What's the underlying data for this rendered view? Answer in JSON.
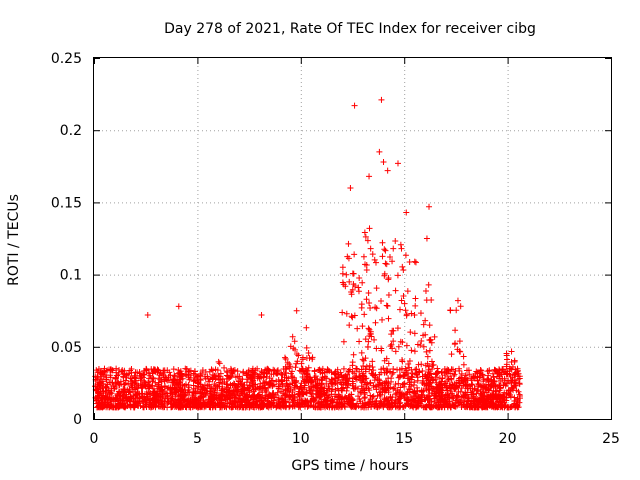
{
  "chart_data": {
    "type": "scatter",
    "title": "Day 278 of 2021, Rate Of TEC Index for receiver cibg",
    "xlabel": "GPS time / hours",
    "ylabel": "ROTI / TECUs",
    "xlim": [
      0,
      25
    ],
    "ylim": [
      0,
      0.25
    ],
    "xticks": [
      "0",
      "5",
      "10",
      "15",
      "20",
      "25"
    ],
    "xtick_values": [
      0,
      5,
      10,
      15,
      20,
      25
    ],
    "yticks": [
      "0",
      "0.05",
      "0.1",
      "0.15",
      "0.2",
      "0.25"
    ],
    "ytick_values": [
      0,
      0.05,
      0.1,
      0.15,
      0.2,
      0.25
    ],
    "grid": true,
    "marker": "plus",
    "color": "#ff0000",
    "series": [
      {
        "name": "ROTI",
        "x_range": [
          0,
          20.6
        ],
        "baseline_band": [
          0.008,
          0.035
        ],
        "notable_points": [
          {
            "x": 2.6,
            "y": 0.072
          },
          {
            "x": 4.1,
            "y": 0.078
          },
          {
            "x": 8.1,
            "y": 0.072
          },
          {
            "x": 9.8,
            "y": 0.075
          },
          {
            "x": 12.6,
            "y": 0.217
          },
          {
            "x": 13.9,
            "y": 0.221
          },
          {
            "x": 13.8,
            "y": 0.185
          },
          {
            "x": 14.0,
            "y": 0.178
          },
          {
            "x": 14.2,
            "y": 0.172
          },
          {
            "x": 14.7,
            "y": 0.177
          },
          {
            "x": 13.3,
            "y": 0.168
          },
          {
            "x": 12.4,
            "y": 0.16
          },
          {
            "x": 16.2,
            "y": 0.147
          },
          {
            "x": 16.1,
            "y": 0.125
          },
          {
            "x": 15.1,
            "y": 0.143
          },
          {
            "x": 17.6,
            "y": 0.082
          },
          {
            "x": 15.5,
            "y": 0.072
          }
        ]
      }
    ]
  }
}
